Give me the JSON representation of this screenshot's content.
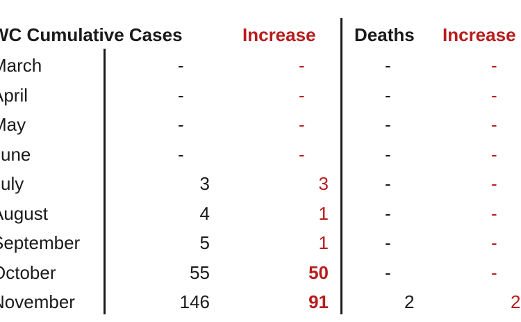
{
  "headers": {
    "cumulative": "WC Cumulative Cases",
    "increase_cases": "Increase",
    "deaths": "Deaths",
    "increase_deaths": "Increase"
  },
  "rows": [
    {
      "month": "March",
      "cases": "-",
      "inc": "-",
      "deaths": "-",
      "dinc": "-",
      "inc_bold": false
    },
    {
      "month": "April",
      "cases": "-",
      "inc": "-",
      "deaths": "-",
      "dinc": "-",
      "inc_bold": false
    },
    {
      "month": "May",
      "cases": "-",
      "inc": "-",
      "deaths": "-",
      "dinc": "-",
      "inc_bold": false
    },
    {
      "month": "June",
      "cases": "-",
      "inc": "-",
      "deaths": "-",
      "dinc": "-",
      "inc_bold": false
    },
    {
      "month": "July",
      "cases": "3",
      "inc": "3",
      "deaths": "-",
      "dinc": "-",
      "inc_bold": false
    },
    {
      "month": "August",
      "cases": "4",
      "inc": "1",
      "deaths": "-",
      "dinc": "-",
      "inc_bold": false
    },
    {
      "month": "September",
      "cases": "5",
      "inc": "1",
      "deaths": "-",
      "dinc": "-",
      "inc_bold": false
    },
    {
      "month": "October",
      "cases": "55",
      "inc": "50",
      "deaths": "-",
      "dinc": "-",
      "inc_bold": true
    },
    {
      "month": "November",
      "cases": "146",
      "inc": "91",
      "deaths": "2",
      "dinc": "2",
      "inc_bold": true
    }
  ]
}
